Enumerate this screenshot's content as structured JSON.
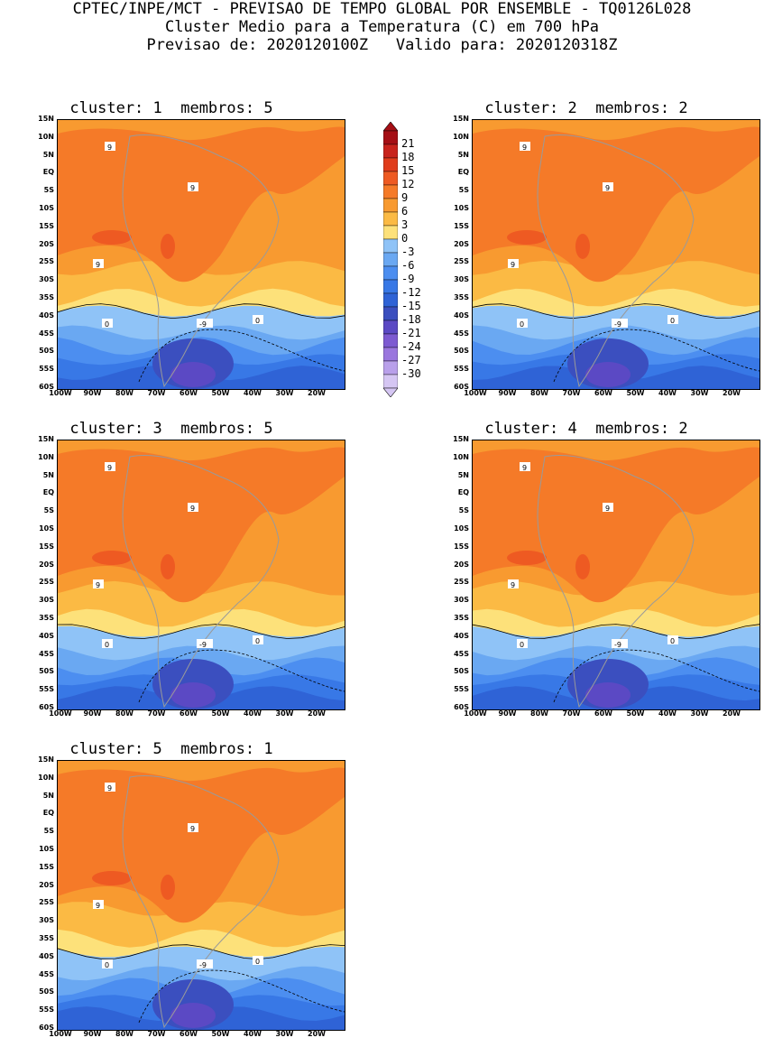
{
  "header": {
    "line1": "CPTEC/INPE/MCT - PREVISAO DE TEMPO GLOBAL POR ENSEMBLE - TQ0126L028",
    "line2": "Cluster Medio para a Temperatura (C) em 700 hPa",
    "line3": "Previsao de: 2020120100Z   Valido para: 2020120318Z"
  },
  "panels": [
    {
      "title": "cluster: 1  membros: 5"
    },
    {
      "title": "cluster: 2  membros: 2"
    },
    {
      "title": "cluster: 3  membros: 5"
    },
    {
      "title": "cluster: 4  membros: 2"
    },
    {
      "title": "cluster: 5  membros: 1"
    }
  ],
  "axes": {
    "lat_labels": [
      "15N",
      "10N",
      "5N",
      "EQ",
      "5S",
      "10S",
      "15S",
      "20S",
      "25S",
      "30S",
      "35S",
      "40S",
      "45S",
      "50S",
      "55S",
      "60S"
    ],
    "lon_labels": [
      "100W",
      "90W",
      "80W",
      "70W",
      "60W",
      "50W",
      "40W",
      "30W",
      "20W"
    ]
  },
  "contour_labels": {
    "warm": "9",
    "zero": "0",
    "cold": "-9"
  },
  "colorbar": {
    "labels": [
      "21",
      "18",
      "15",
      "12",
      "9",
      "6",
      "3",
      "0",
      "-3",
      "-6",
      "-9",
      "-12",
      "-15",
      "-18",
      "-21",
      "-24",
      "-27",
      "-30"
    ],
    "colors": [
      "#a50f15",
      "#c8231c",
      "#e03c1b",
      "#ee5a22",
      "#f57a28",
      "#f89a30",
      "#fbba44",
      "#fde17a",
      "#8fc3f7",
      "#6aa8f2",
      "#4c8ef0",
      "#3878e6",
      "#2f63d6",
      "#3b4fbf",
      "#5b49c4",
      "#7d5ad1",
      "#9a76de",
      "#b9a0ea",
      "#d5c6f3"
    ]
  }
}
